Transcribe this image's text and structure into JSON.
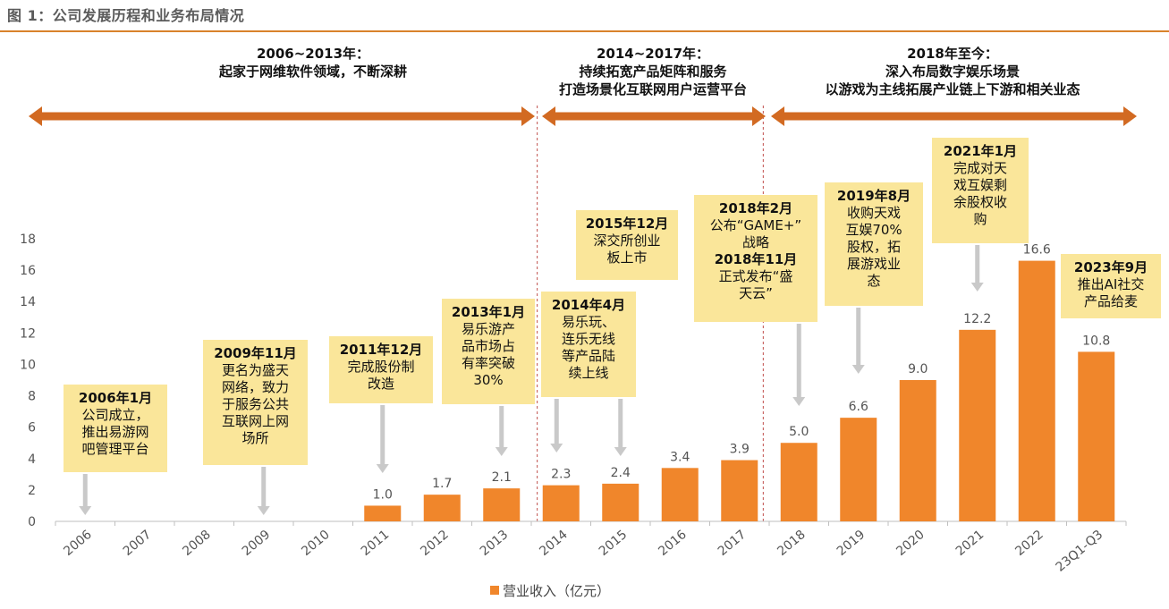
{
  "figure_title": "图 1：公司发展历程和业务布局情况",
  "phases": [
    {
      "title": "2006~2013年：",
      "desc": [
        "起家于网维软件领域，不断深耕"
      ]
    },
    {
      "title": "2014~2017年：",
      "desc": [
        "持续拓宽产品矩阵和服务",
        "打造场景化互联网用户运营平台"
      ]
    },
    {
      "title": "2018年至今：",
      "desc": [
        "深入布局数字娱乐场景",
        "以游戏为主线拓展产业链上下游和相关业态"
      ]
    }
  ],
  "milestones": [
    {
      "title": "2006年1月",
      "body": "公司成立，\n推出易游网\n吧管理平台"
    },
    {
      "title": "2009年11月",
      "body": "更名为盛天\n网络，致力\n于服务公共\n互联网上网\n场所"
    },
    {
      "title": "2011年12月",
      "body": "完成股份制\n改造"
    },
    {
      "title": "2013年1月",
      "body": "易乐游产\n品市场占\n有率突破\n30%"
    },
    {
      "title": "2014年4月",
      "body": "易乐玩、\n连乐无线\n等产品陆\n续上线"
    },
    {
      "title": "2015年12月",
      "body": "深交所创业\n板上市"
    },
    {
      "title": "2018年2月",
      "body": "公布“GAME+”\n战略",
      "title2": "2018年11月",
      "body2": "正式发布“盛\n天云”"
    },
    {
      "title": "2019年8月",
      "body": "收购天戏\n互娱70%\n股权，拓\n展游戏业\n态"
    },
    {
      "title": "2021年1月",
      "body": "完成对天\n戏互娱剩\n余股权收\n购"
    },
    {
      "title": "2023年9月",
      "body": "推出AI社交\n产品给麦"
    }
  ],
  "chart_data": {
    "type": "bar",
    "categories": [
      "2006",
      "2007",
      "2008",
      "2009",
      "2010",
      "2011",
      "2012",
      "2013",
      "2014",
      "2015",
      "2016",
      "2017",
      "2018",
      "2019",
      "2020",
      "2021",
      "2022",
      "23Q1-Q3"
    ],
    "series": [
      {
        "name": "营业收入（亿元）",
        "values": [
          null,
          null,
          null,
          null,
          null,
          1.0,
          1.7,
          2.1,
          2.3,
          2.4,
          3.4,
          3.9,
          5.0,
          6.6,
          9.0,
          12.2,
          16.6,
          10.8
        ]
      }
    ],
    "value_labels": [
      "",
      "",
      "",
      "",
      "",
      "1.0",
      "1.7",
      "2.1",
      "2.3",
      "2.4",
      "3.4",
      "3.9",
      "5.0",
      "6.6",
      "9.0",
      "12.2",
      "16.6",
      "10.8"
    ],
    "y_ticks": [
      "0",
      "2",
      "4",
      "6",
      "8",
      "10",
      "12",
      "14",
      "16",
      "18"
    ],
    "ylim": [
      0,
      18
    ],
    "legend_position": "bottom-center",
    "bar_color": "#f0862b",
    "arrow_color": "#d26a22",
    "note_color": "#fae69a"
  }
}
